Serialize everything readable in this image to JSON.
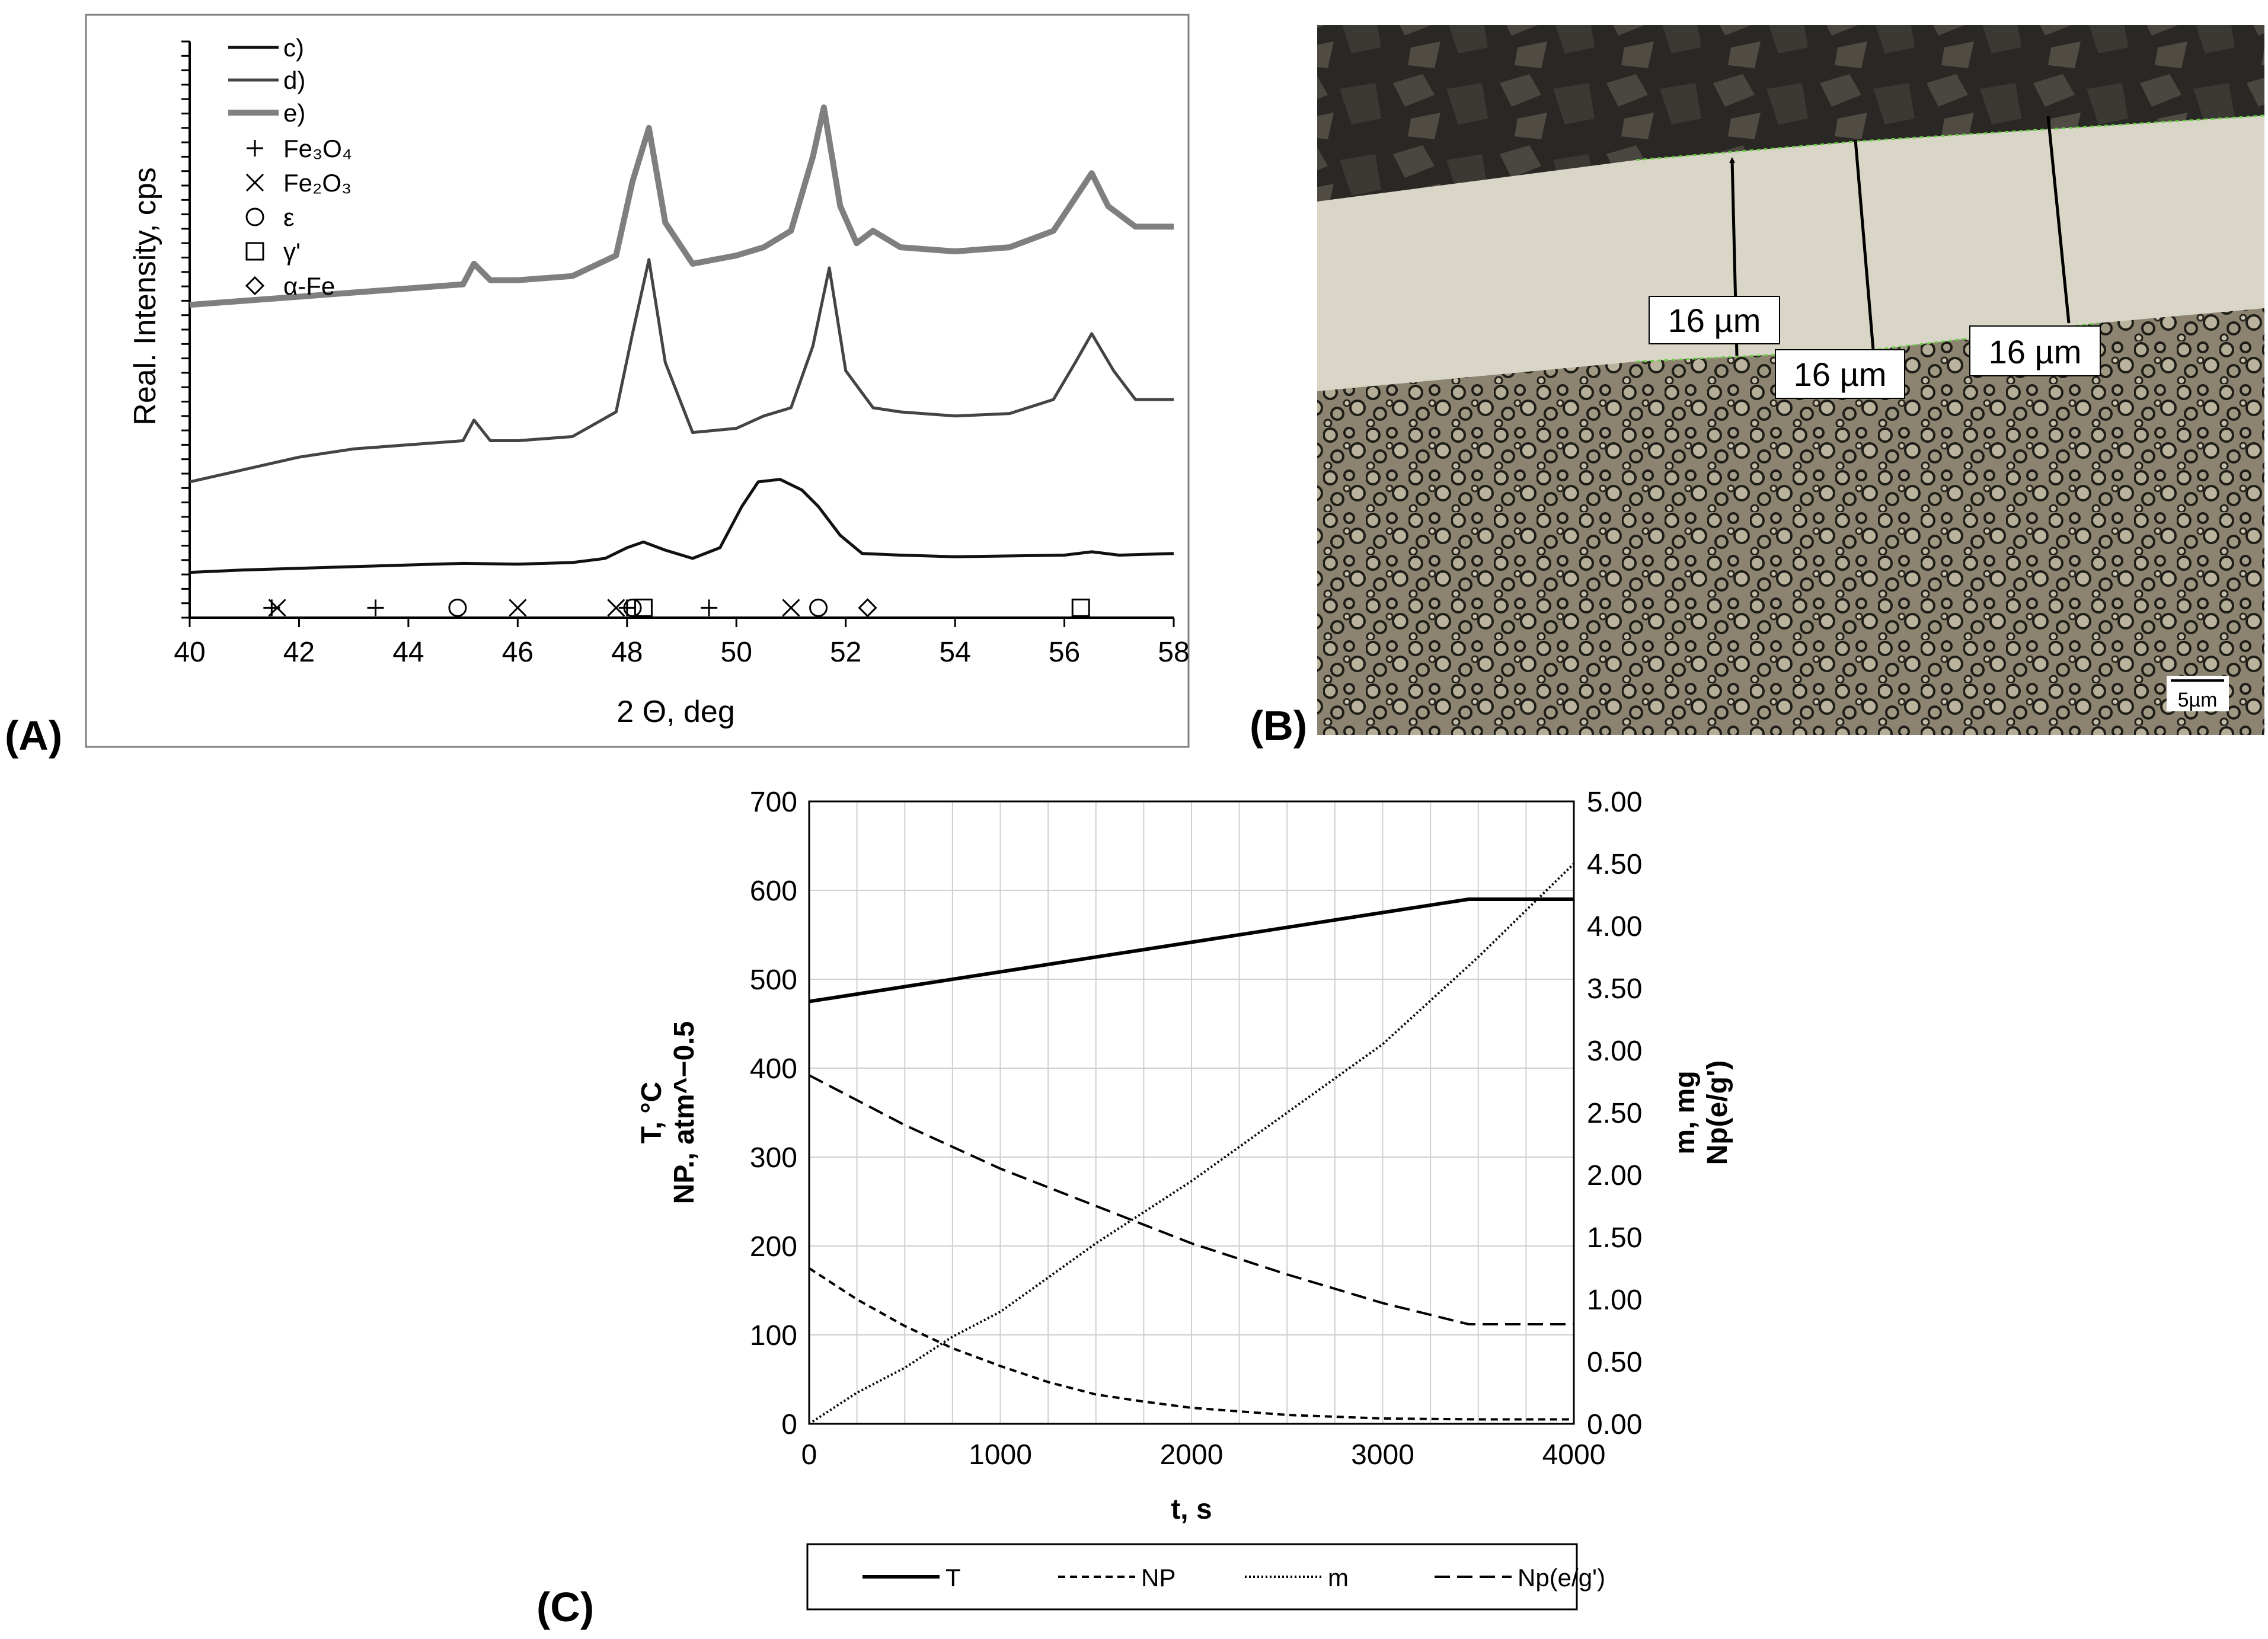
{
  "panel_labels": {
    "a": "(A)",
    "b": "(B)",
    "c": "(C)"
  },
  "panel_b": {
    "measurements": [
      "16 µm",
      "16 µm",
      "16 µm"
    ],
    "scale_bar": "5µm",
    "colors": {
      "resin": "#2a2824",
      "layer": "#d9d6c8",
      "substrate": "#8c8470",
      "arrows": "#000000",
      "boundary": "#6ecf4a"
    }
  },
  "chart_data": [
    {
      "type": "line",
      "title": "",
      "xlabel": "2 Θ, deg",
      "ylabel": "Real. Intensity, cps",
      "xlim": [
        40,
        58
      ],
      "xticks": [
        40,
        42,
        44,
        46,
        48,
        50,
        52,
        54,
        56,
        58
      ],
      "y_ticks_labeled": false,
      "grid": false,
      "legend_position": "top-left",
      "series": [
        {
          "name": "c)",
          "color": "#111111",
          "x": [
            40,
            41,
            42,
            43,
            44,
            45,
            46,
            47,
            47.6,
            48.0,
            48.3,
            48.7,
            49.2,
            49.7,
            50.1,
            50.4,
            50.8,
            51.2,
            51.5,
            51.9,
            52.3,
            53,
            54,
            55,
            56,
            56.5,
            57,
            58
          ],
          "y": [
            55,
            58,
            60,
            62,
            64,
            66,
            65,
            67,
            72,
            85,
            92,
            82,
            72,
            85,
            135,
            165,
            168,
            155,
            135,
            100,
            78,
            76,
            74,
            75,
            76,
            80,
            76,
            78
          ]
        },
        {
          "name": "d)",
          "color": "#444444",
          "x": [
            40,
            41,
            42,
            43,
            44,
            45,
            45.2,
            45.5,
            46,
            47,
            47.8,
            48.1,
            48.4,
            48.7,
            49.2,
            50,
            50.5,
            51.0,
            51.4,
            51.7,
            52.0,
            52.5,
            53,
            54,
            55,
            55.8,
            56.2,
            56.5,
            56.9,
            57.3,
            58
          ],
          "y": [
            165,
            180,
            195,
            205,
            210,
            215,
            240,
            215,
            215,
            220,
            250,
            345,
            435,
            310,
            225,
            230,
            245,
            255,
            330,
            425,
            300,
            255,
            250,
            245,
            248,
            265,
            310,
            345,
            300,
            265,
            265
          ]
        },
        {
          "name": "e)",
          "color": "#7f7f7f",
          "x": [
            40,
            41,
            42,
            43,
            44,
            45,
            45.2,
            45.5,
            46,
            47,
            47.8,
            48.1,
            48.4,
            48.7,
            49.2,
            50,
            50.5,
            51.0,
            51.4,
            51.6,
            51.9,
            52.2,
            52.5,
            53,
            54,
            55,
            55.8,
            56.2,
            56.5,
            56.8,
            57.3,
            58
          ],
          "y": [
            380,
            385,
            390,
            395,
            400,
            405,
            430,
            410,
            410,
            415,
            440,
            530,
            595,
            480,
            430,
            440,
            450,
            470,
            560,
            620,
            500,
            455,
            470,
            450,
            445,
            450,
            470,
            510,
            540,
            500,
            475,
            475
          ]
        }
      ],
      "markers_y": 12,
      "marker_series": [
        {
          "name": "Fe₃O₄",
          "symbol": "plus",
          "x": [
            41.5,
            43.4,
            48.0,
            49.5
          ]
        },
        {
          "name": "Fe₂O₃",
          "symbol": "cross",
          "x": [
            41.6,
            46.0,
            47.8,
            51.0
          ]
        },
        {
          "name": "ε",
          "symbol": "circle",
          "x": [
            44.9,
            48.1,
            51.5
          ]
        },
        {
          "name": "γ'",
          "symbol": "square",
          "x": [
            48.3,
            56.3
          ]
        },
        {
          "name": "α-Fe",
          "symbol": "diamond",
          "x": [
            52.4
          ]
        }
      ]
    },
    {
      "type": "line",
      "title": "",
      "xlabel": "t, s",
      "ylabel_left": [
        "T, °C",
        "NP., atm^−0.5"
      ],
      "ylabel_right": [
        "m, mg",
        "Np(e/g')"
      ],
      "xlim": [
        0,
        4000
      ],
      "ylim_left": [
        0,
        700
      ],
      "ylim_right": [
        0,
        5
      ],
      "xticks": [
        0,
        1000,
        2000,
        3000,
        4000
      ],
      "yticks_left": [
        0,
        100,
        200,
        300,
        400,
        500,
        600,
        700
      ],
      "yticks_right": [
        "0.00",
        "0.50",
        "1.00",
        "1.50",
        "2.00",
        "2.50",
        "3.00",
        "3.50",
        "4.00",
        "4.50",
        "5.00"
      ],
      "grid": true,
      "legend_position": "bottom",
      "series": [
        {
          "name": "T",
          "axis": "left",
          "style": "solid",
          "x": [
            0,
            3450,
            4000
          ],
          "y": [
            475,
            590,
            590
          ]
        },
        {
          "name": "NP",
          "axis": "left",
          "style": "dashed",
          "x": [
            0,
            250,
            500,
            750,
            1000,
            1250,
            1500,
            1750,
            2000,
            2500,
            3000,
            3500,
            4000
          ],
          "y": [
            175,
            140,
            110,
            85,
            65,
            47,
            33,
            25,
            18,
            10,
            6,
            5,
            5
          ]
        },
        {
          "name": "m",
          "axis": "right",
          "style": "dotted",
          "x": [
            0,
            250,
            500,
            750,
            1000,
            1500,
            2000,
            2500,
            3000,
            3500,
            4000
          ],
          "y": [
            0.0,
            0.25,
            0.45,
            0.7,
            0.9,
            1.45,
            1.95,
            2.5,
            3.05,
            3.75,
            4.5
          ]
        },
        {
          "name": "Np(e/g')",
          "axis": "right",
          "style": "longdash",
          "x": [
            0,
            500,
            1000,
            1500,
            2000,
            2500,
            3000,
            3450,
            4000
          ],
          "y": [
            2.8,
            2.4,
            2.05,
            1.75,
            1.45,
            1.2,
            0.97,
            0.8,
            0.8
          ]
        }
      ]
    }
  ]
}
